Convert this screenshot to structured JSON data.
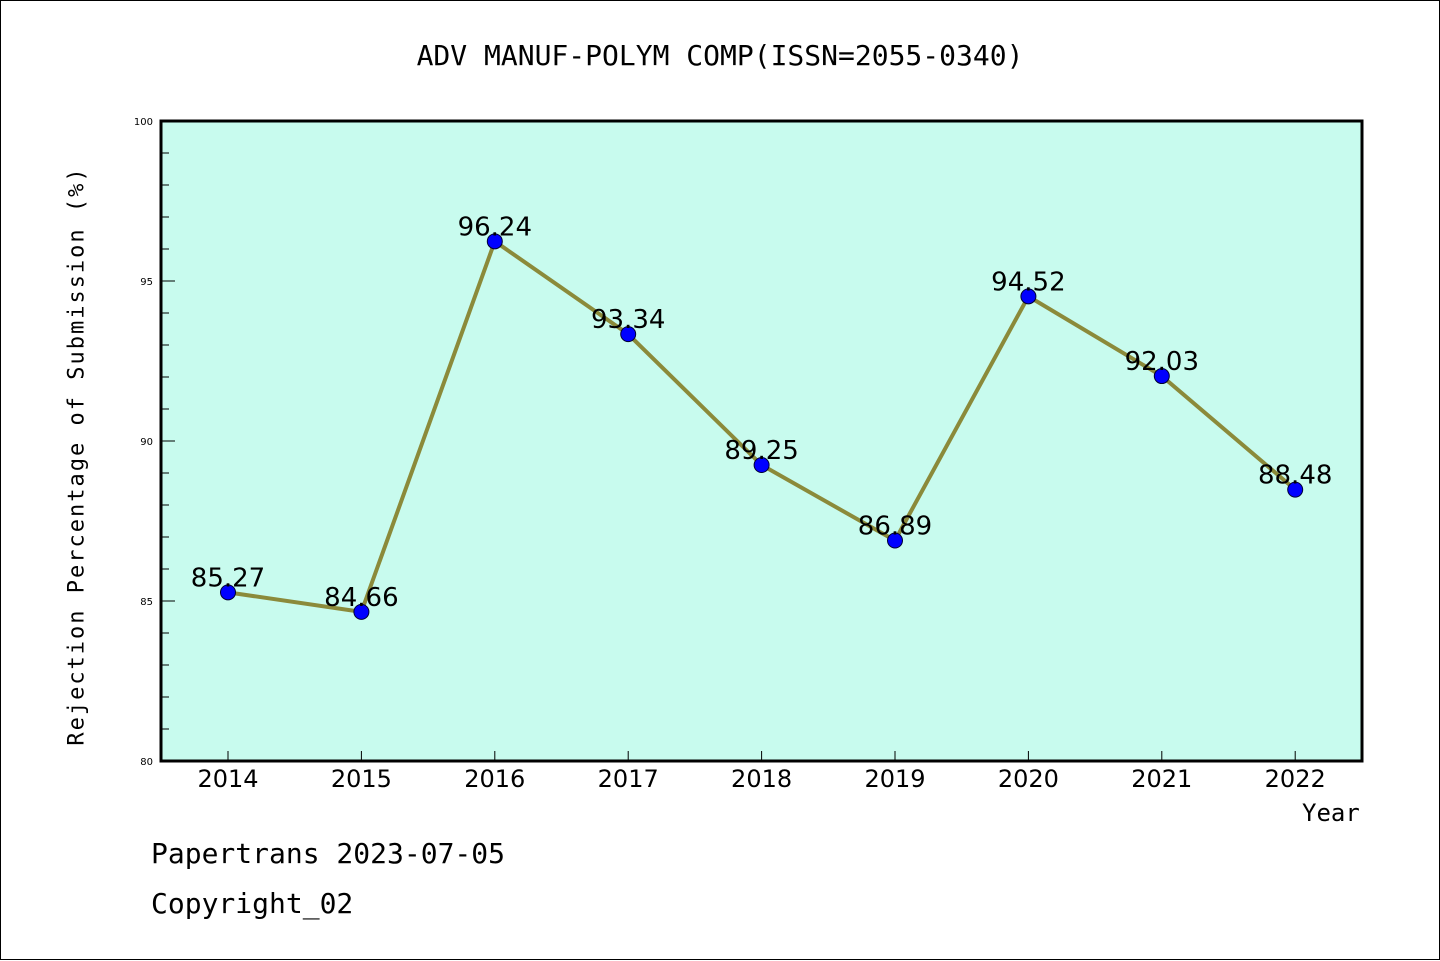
{
  "title": "ADV MANUF-POLYM COMP(ISSN=2055-0340)",
  "footer": {
    "line1": "Papertrans 2023-07-05",
    "line2": "Copyright_02"
  },
  "colors": {
    "plot_background": "#c8fbee",
    "line": "#8b8a3a",
    "marker": "#0000ff"
  },
  "chart_data": {
    "type": "line",
    "title": "ADV MANUF-POLYM COMP(ISSN=2055-0340)",
    "xlabel": "Year",
    "ylabel": "Rejection Percentage of Submission (%)",
    "ylim": [
      80,
      100
    ],
    "yticks": [
      80,
      85,
      90,
      95,
      100
    ],
    "grid": false,
    "x": [
      "2014",
      "2015",
      "2016",
      "2017",
      "2018",
      "2019",
      "2020",
      "2021",
      "2022"
    ],
    "values": [
      85.27,
      84.66,
      96.24,
      93.34,
      89.25,
      86.89,
      94.52,
      92.03,
      88.48
    ],
    "data_labels": [
      "85.27",
      "84.66",
      "96.24",
      "93.34",
      "89.25",
      "86.89",
      "94.52",
      "92.03",
      "88.48"
    ]
  }
}
